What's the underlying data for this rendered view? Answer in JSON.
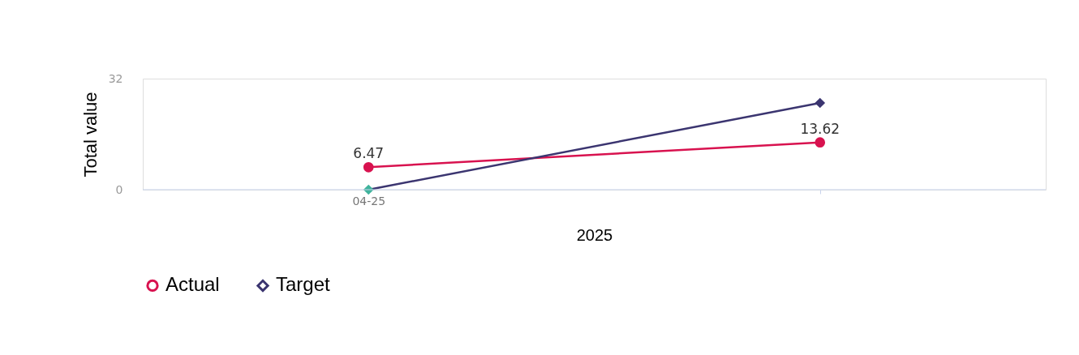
{
  "chart_data": {
    "type": "line",
    "xlabel": "2025",
    "ylabel": "Total value",
    "categories": [
      "04-25",
      null
    ],
    "series": [
      {
        "name": "Actual",
        "color": "#d8124f",
        "marker": "circle",
        "values": [
          6.47,
          13.62
        ],
        "value_labels": [
          "6.47",
          "13.62"
        ]
      },
      {
        "name": "Target",
        "color": "#3b3570",
        "marker": "diamond",
        "colors": [
          "#3fb39c",
          "#3b3570"
        ],
        "values": [
          0,
          25
        ]
      }
    ],
    "ylim": [
      0,
      32
    ],
    "yticks": [
      0,
      32
    ],
    "grid": false,
    "legend": "bottom"
  }
}
